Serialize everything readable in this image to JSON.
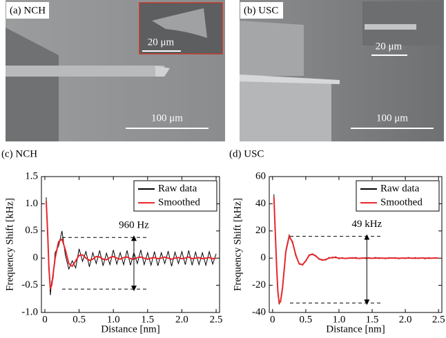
{
  "images": [
    {
      "label": "(a) NCH",
      "inset_scale": "20 μm",
      "scale": "100 μm"
    },
    {
      "label": "(b) USC",
      "inset_scale": "20 μm",
      "scale": "100 μm"
    }
  ],
  "chart_data": [
    {
      "type": "line",
      "title": "(c) NCH",
      "xlabel": "Distance [nm]",
      "ylabel": "Frequency Shift [kHz]",
      "xlim": [
        -0.05,
        2.55
      ],
      "xticks": [
        0,
        0.5,
        {
          "value": 1.0,
          "label": "1.0"
        },
        1.5,
        {
          "value": 2.0,
          "label": "2.0"
        },
        2.5
      ],
      "ylim": [
        -1.0,
        1.5
      ],
      "yticks": [
        {
          "value": -1.0,
          "label": "-1.0"
        },
        -0.5,
        0,
        0.5,
        {
          "value": 1.0,
          "label": "1.0"
        },
        1.5
      ],
      "legend": "upper right",
      "x": [
        0.02,
        0.04,
        0.06,
        0.08,
        0.1,
        0.12,
        0.15,
        0.2,
        0.25,
        0.3,
        0.35,
        0.4,
        0.45,
        0.5,
        0.55,
        0.6,
        0.65,
        0.7,
        0.75,
        0.8,
        0.85,
        0.9,
        0.95,
        1.0,
        1.05,
        1.1,
        1.15,
        1.2,
        1.25,
        1.3,
        1.35,
        1.4,
        1.45,
        1.5,
        1.55,
        1.6,
        1.65,
        1.7,
        1.75,
        1.8,
        1.85,
        1.9,
        1.95,
        2.0,
        2.05,
        2.1,
        2.15,
        2.2,
        2.25,
        2.3,
        2.35,
        2.4,
        2.45,
        2.5
      ],
      "series": [
        {
          "name": "Raw data",
          "color": "#000000",
          "values": [
            1.12,
            0.42,
            -0.12,
            -0.68,
            -0.42,
            -0.38,
            0.1,
            0.22,
            0.5,
            0.05,
            -0.2,
            -0.05,
            -0.18,
            0.17,
            -0.06,
            0.12,
            -0.16,
            0.1,
            -0.1,
            0.14,
            -0.14,
            0.09,
            -0.12,
            0.15,
            -0.11,
            0.1,
            -0.12,
            0.14,
            -0.13,
            0.1,
            -0.1,
            0.15,
            -0.12,
            0.1,
            -0.13,
            0.12,
            -0.14,
            0.1,
            -0.1,
            0.13,
            -0.15,
            0.11,
            -0.1,
            0.12,
            -0.12,
            0.14,
            -0.13,
            0.11,
            -0.12,
            0.1,
            -0.13,
            0.12,
            -0.11,
            0.08
          ]
        },
        {
          "name": "Smoothed",
          "color": "#e8262b",
          "values": [
            1.05,
            0.5,
            -0.2,
            -0.55,
            -0.5,
            -0.3,
            0.0,
            0.3,
            0.35,
            0.15,
            -0.1,
            -0.15,
            -0.05,
            0.05,
            0.06,
            0.0,
            -0.04,
            -0.02,
            0.03,
            0.02,
            -0.02,
            -0.03,
            0.01,
            0.03,
            0.0,
            -0.02,
            0.01,
            0.02,
            -0.01,
            -0.02,
            0.01,
            0.02,
            0.0,
            -0.02,
            0.0,
            0.01,
            -0.01,
            0.0,
            0.02,
            0.0,
            -0.02,
            0.0,
            0.01,
            -0.01,
            0.0,
            0.02,
            -0.01,
            0.0,
            0.01,
            -0.01,
            0.0,
            0.01,
            -0.01,
            0.0
          ]
        }
      ],
      "annotation": {
        "text": "960 Hz",
        "x": 1.3,
        "y": [
          0.38,
          -0.57
        ]
      }
    },
    {
      "type": "line",
      "title": "(d) USC",
      "xlabel": "Distance [nm]",
      "ylabel": "Frequency Shift [kHz]",
      "xlim": [
        -0.05,
        2.55
      ],
      "xticks": [
        0,
        0.5,
        {
          "value": 1.0,
          "label": "1.0"
        },
        1.5,
        {
          "value": 2.0,
          "label": "2.0"
        },
        2.5
      ],
      "ylim": [
        -40,
        60
      ],
      "yticks": [
        -40,
        -20,
        0,
        20,
        40,
        60
      ],
      "legend": "upper right",
      "x": [
        0.02,
        0.04,
        0.06,
        0.08,
        0.1,
        0.12,
        0.15,
        0.2,
        0.25,
        0.3,
        0.35,
        0.4,
        0.45,
        0.5,
        0.55,
        0.6,
        0.65,
        0.7,
        0.75,
        0.8,
        0.85,
        0.9,
        0.95,
        1.0,
        1.05,
        1.1,
        1.15,
        1.2,
        1.25,
        1.3,
        1.35,
        1.4,
        1.45,
        1.5,
        1.55,
        1.6,
        1.65,
        1.7,
        1.75,
        1.8,
        1.85,
        1.9,
        1.95,
        2.0,
        2.05,
        2.1,
        2.15,
        2.2,
        2.25,
        2.3,
        2.35,
        2.4,
        2.45,
        2.5
      ],
      "series": [
        {
          "name": "Raw data",
          "color": "#000000",
          "values": [
            47,
            19,
            -6,
            -26,
            -34,
            -31,
            -21,
            6,
            17,
            11,
            3,
            -4.5,
            -4.5,
            -2.5,
            2.5,
            2.5,
            2,
            -1,
            -1,
            -1.5,
            0.5,
            0,
            1,
            -0.5,
            0.4,
            -0.5,
            0.3,
            -0.3,
            0.5,
            -0.4,
            0.3,
            -0.4,
            0.4,
            -0.3,
            0.5,
            -0.4,
            0.3,
            -0.5,
            0.4,
            -0.3,
            0.4,
            -0.5,
            0.3,
            -0.4,
            0.5,
            -0.3,
            0.4,
            -0.4,
            0.3,
            -0.5,
            0.4,
            -0.3,
            0.4,
            -0.2
          ]
        },
        {
          "name": "Smoothed",
          "color": "#e8262b",
          "values": [
            45,
            20,
            -5,
            -25,
            -33,
            -32,
            -22,
            5,
            16,
            12,
            2,
            -4,
            -5,
            -2,
            2,
            3,
            1.5,
            -0.5,
            -1.5,
            -1,
            0,
            0.5,
            0.5,
            0,
            0,
            -0.2,
            0,
            0.2,
            0,
            -0.2,
            0,
            0.1,
            0,
            -0.1,
            0,
            0.1,
            0,
            -0.1,
            0,
            0.1,
            0,
            -0.1,
            0,
            0,
            0.1,
            0,
            -0.1,
            0,
            0.1,
            0,
            -0.1,
            0,
            0.1,
            0
          ]
        }
      ],
      "annotation": {
        "text": "49 kHz",
        "x": 1.42,
        "y": [
          16,
          -33
        ]
      }
    }
  ]
}
